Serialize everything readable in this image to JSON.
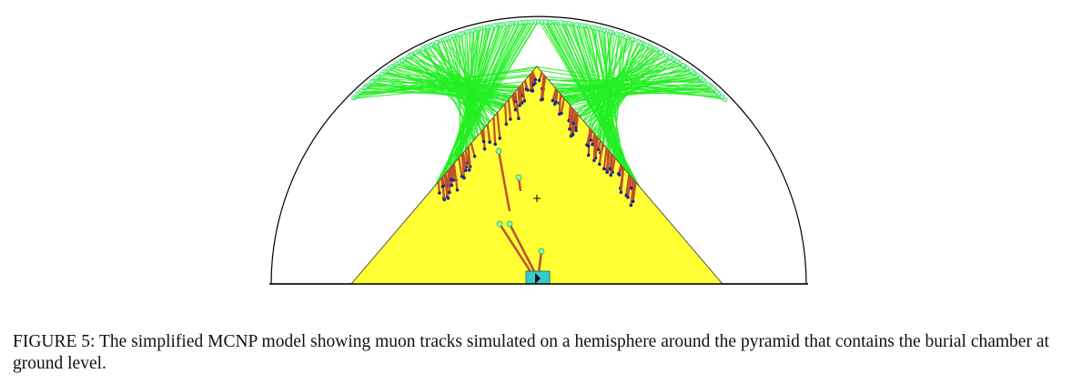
{
  "figure": {
    "caption": "FIGURE 5: The simplified MCNP model showing muon tracks simulated on a hemisphere around the pyramid that contains the burial chamber at ground level.",
    "colors": {
      "hemisphere_outline": "#000000",
      "pyramid_fill": "#ffff33",
      "muon_tracks": "#22ee22",
      "track_endpoints": "#88ffaa",
      "absorbed_tracks": "#c0502a",
      "track_ends_blue": "#1a2a8a",
      "burial_chamber": "#33cccc"
    },
    "icons": {
      "pyramid_center_marker": "plus-marker"
    }
  }
}
